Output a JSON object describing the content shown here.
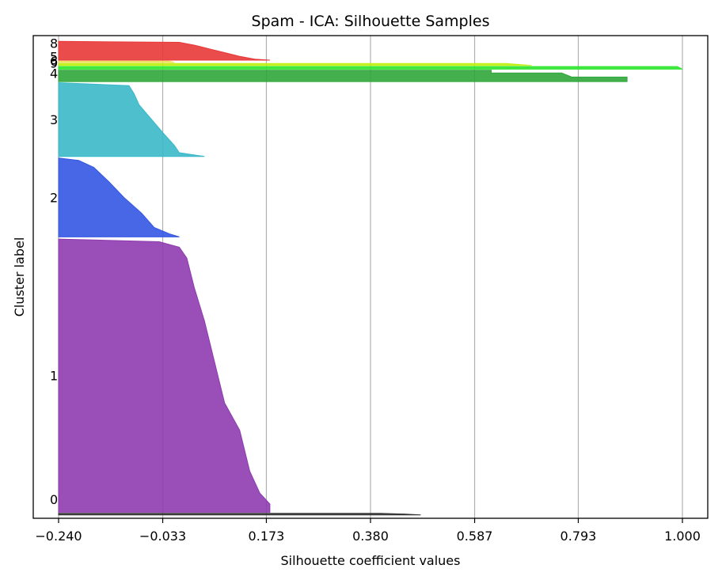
{
  "chart_data": {
    "type": "area",
    "title": "Spam - ICA: Silhouette Samples",
    "xlabel": "Silhouette coefficient values",
    "ylabel": "Cluster label",
    "xlim": [
      -0.24,
      1.0
    ],
    "xticks": [
      "-0.240",
      "-0.033",
      "0.173",
      "0.380",
      "0.587",
      "0.793",
      "1.000"
    ],
    "x_gridlines": true,
    "y_extent_samples": 4600,
    "clusters": [
      {
        "label": "0",
        "y_start": 10,
        "size": 15,
        "color": "#333333",
        "profile": [
          [
            0,
            0.48
          ],
          [
            0.5,
            0.45
          ],
          [
            1,
            0.4
          ]
        ]
      },
      {
        "label": "1",
        "y_start": 35,
        "size": 2630,
        "color": "#8e3bb0",
        "profile": [
          [
            0,
            0.18
          ],
          [
            0.03,
            0.18
          ],
          [
            0.07,
            0.16
          ],
          [
            0.15,
            0.14
          ],
          [
            0.3,
            0.12
          ],
          [
            0.4,
            0.09
          ],
          [
            0.55,
            0.07
          ],
          [
            0.7,
            0.05
          ],
          [
            0.82,
            0.03
          ],
          [
            0.93,
            0.015
          ],
          [
            0.97,
            0.0
          ],
          [
            0.99,
            -0.04
          ],
          [
            1,
            -0.24
          ]
        ]
      },
      {
        "label": "2",
        "y_start": 2685,
        "size": 760,
        "color": "#3457e3",
        "profile": [
          [
            0,
            0.0
          ],
          [
            0.04,
            -0.02
          ],
          [
            0.12,
            -0.05
          ],
          [
            0.3,
            -0.075
          ],
          [
            0.5,
            -0.11
          ],
          [
            0.7,
            -0.14
          ],
          [
            0.88,
            -0.17
          ],
          [
            0.97,
            -0.2
          ],
          [
            1,
            -0.24
          ]
        ]
      },
      {
        "label": "3",
        "y_start": 3460,
        "size": 710,
        "color": "#3ab8c8",
        "profile": [
          [
            0,
            0.05
          ],
          [
            0.05,
            0.0
          ],
          [
            0.15,
            -0.01
          ],
          [
            0.3,
            -0.03
          ],
          [
            0.5,
            -0.055
          ],
          [
            0.7,
            -0.08
          ],
          [
            0.85,
            -0.09
          ],
          [
            0.96,
            -0.1
          ],
          [
            1,
            -0.24
          ]
        ]
      },
      {
        "label": "4",
        "y_start": 4180,
        "size": 110,
        "color": "#2fa63a",
        "profile": [
          [
            0,
            0.89
          ],
          [
            0.4,
            0.89
          ],
          [
            0.4,
            0.78
          ],
          [
            0.75,
            0.76
          ],
          [
            0.75,
            0.62
          ],
          [
            1,
            0.62
          ]
        ]
      },
      {
        "label": "5",
        "y_start": 4300,
        "size": 25,
        "color": "#2ee62e",
        "profile": [
          [
            0,
            1.0
          ],
          [
            1,
            0.99
          ]
        ]
      },
      {
        "label": "9",
        "y_start": 4335,
        "size": 20,
        "color": "#bff00f",
        "profile": [
          [
            0,
            0.7
          ],
          [
            1,
            0.65
          ]
        ]
      },
      {
        "label": "6",
        "y_start": 4365,
        "size": 12,
        "color": "#f0e060",
        "profile": [
          [
            0,
            -0.01
          ],
          [
            1,
            -0.02
          ]
        ]
      },
      {
        "label": "8",
        "y_start": 4387,
        "size": 180,
        "color": "#e83838",
        "profile": [
          [
            0,
            0.18
          ],
          [
            0.05,
            0.15
          ],
          [
            0.2,
            0.12
          ],
          [
            0.4,
            0.09
          ],
          [
            0.6,
            0.06
          ],
          [
            0.8,
            0.03
          ],
          [
            0.95,
            0.0
          ],
          [
            1,
            -0.24
          ]
        ]
      }
    ]
  }
}
